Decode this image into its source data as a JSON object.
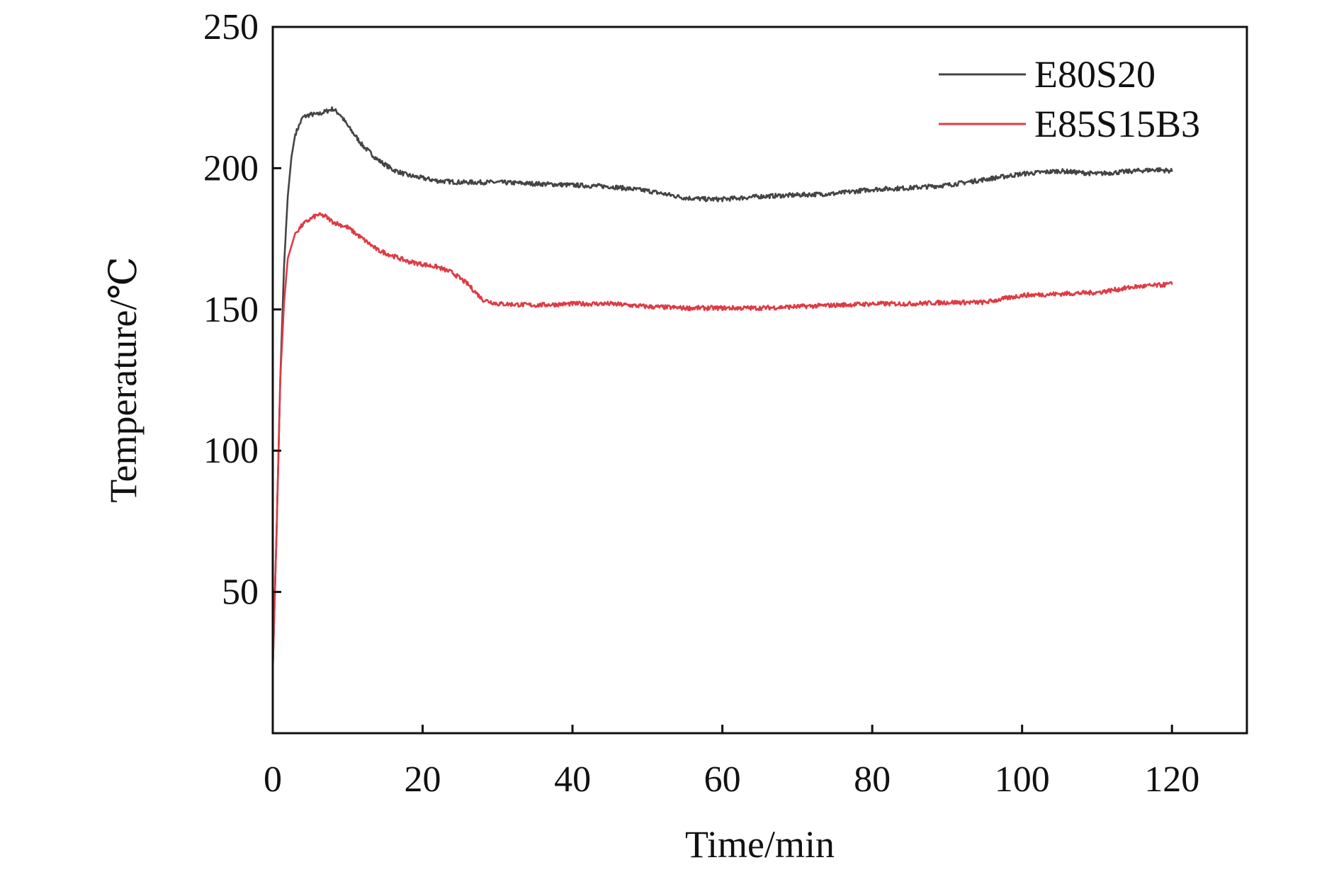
{
  "chart_data": {
    "type": "line",
    "title": "",
    "xlabel": "Time/min",
    "ylabel": "Temperature/℃",
    "xlim": [
      0,
      130
    ],
    "ylim": [
      0,
      250
    ],
    "x_ticks": [
      0,
      20,
      40,
      60,
      80,
      100,
      120
    ],
    "y_ticks": [
      50,
      100,
      150,
      200,
      250
    ],
    "grid": false,
    "legend_position": "top-right",
    "series": [
      {
        "name": "E80S20",
        "color": "#444444",
        "points": [
          [
            0,
            23
          ],
          [
            0.5,
            70
          ],
          [
            1,
            125
          ],
          [
            1.5,
            165
          ],
          [
            2,
            190
          ],
          [
            2.5,
            204
          ],
          [
            3,
            212
          ],
          [
            4,
            218
          ],
          [
            5,
            219
          ],
          [
            6,
            219
          ],
          [
            7,
            220
          ],
          [
            8,
            221
          ],
          [
            9,
            219
          ],
          [
            10,
            215
          ],
          [
            12,
            208
          ],
          [
            14,
            203
          ],
          [
            16,
            199.5
          ],
          [
            18,
            197.5
          ],
          [
            20,
            196.5
          ],
          [
            22,
            195.5
          ],
          [
            25,
            195
          ],
          [
            30,
            195
          ],
          [
            35,
            194.5
          ],
          [
            40,
            194
          ],
          [
            45,
            193.5
          ],
          [
            50,
            192
          ],
          [
            55,
            189.5
          ],
          [
            58,
            189
          ],
          [
            60,
            189
          ],
          [
            65,
            190
          ],
          [
            70,
            190.5
          ],
          [
            75,
            191
          ],
          [
            80,
            192.5
          ],
          [
            85,
            193
          ],
          [
            90,
            194
          ],
          [
            95,
            196
          ],
          [
            100,
            198
          ],
          [
            105,
            199
          ],
          [
            110,
            198
          ],
          [
            115,
            199
          ],
          [
            118,
            199.5
          ],
          [
            120,
            199
          ]
        ]
      },
      {
        "name": "E85S15B3",
        "color": "#dd3b45",
        "points": [
          [
            0,
            23
          ],
          [
            0.5,
            70
          ],
          [
            1,
            125
          ],
          [
            1.5,
            152
          ],
          [
            2,
            168
          ],
          [
            3,
            177
          ],
          [
            4,
            180
          ],
          [
            5,
            182
          ],
          [
            6,
            183.5
          ],
          [
            7,
            183
          ],
          [
            8,
            181
          ],
          [
            10,
            179
          ],
          [
            12,
            175
          ],
          [
            14,
            171
          ],
          [
            16,
            169
          ],
          [
            18,
            167
          ],
          [
            20,
            166
          ],
          [
            22,
            165
          ],
          [
            24,
            163
          ],
          [
            26,
            159
          ],
          [
            28,
            153.5
          ],
          [
            30,
            152
          ],
          [
            35,
            151.5
          ],
          [
            40,
            152
          ],
          [
            45,
            152
          ],
          [
            50,
            151
          ],
          [
            55,
            150.5
          ],
          [
            60,
            150.5
          ],
          [
            65,
            150.5
          ],
          [
            70,
            151
          ],
          [
            75,
            151.5
          ],
          [
            80,
            152
          ],
          [
            85,
            152
          ],
          [
            90,
            152.5
          ],
          [
            95,
            152.5
          ],
          [
            100,
            155
          ],
          [
            105,
            155.5
          ],
          [
            110,
            156
          ],
          [
            115,
            158
          ],
          [
            118,
            158.5
          ],
          [
            120,
            159
          ]
        ]
      }
    ]
  }
}
